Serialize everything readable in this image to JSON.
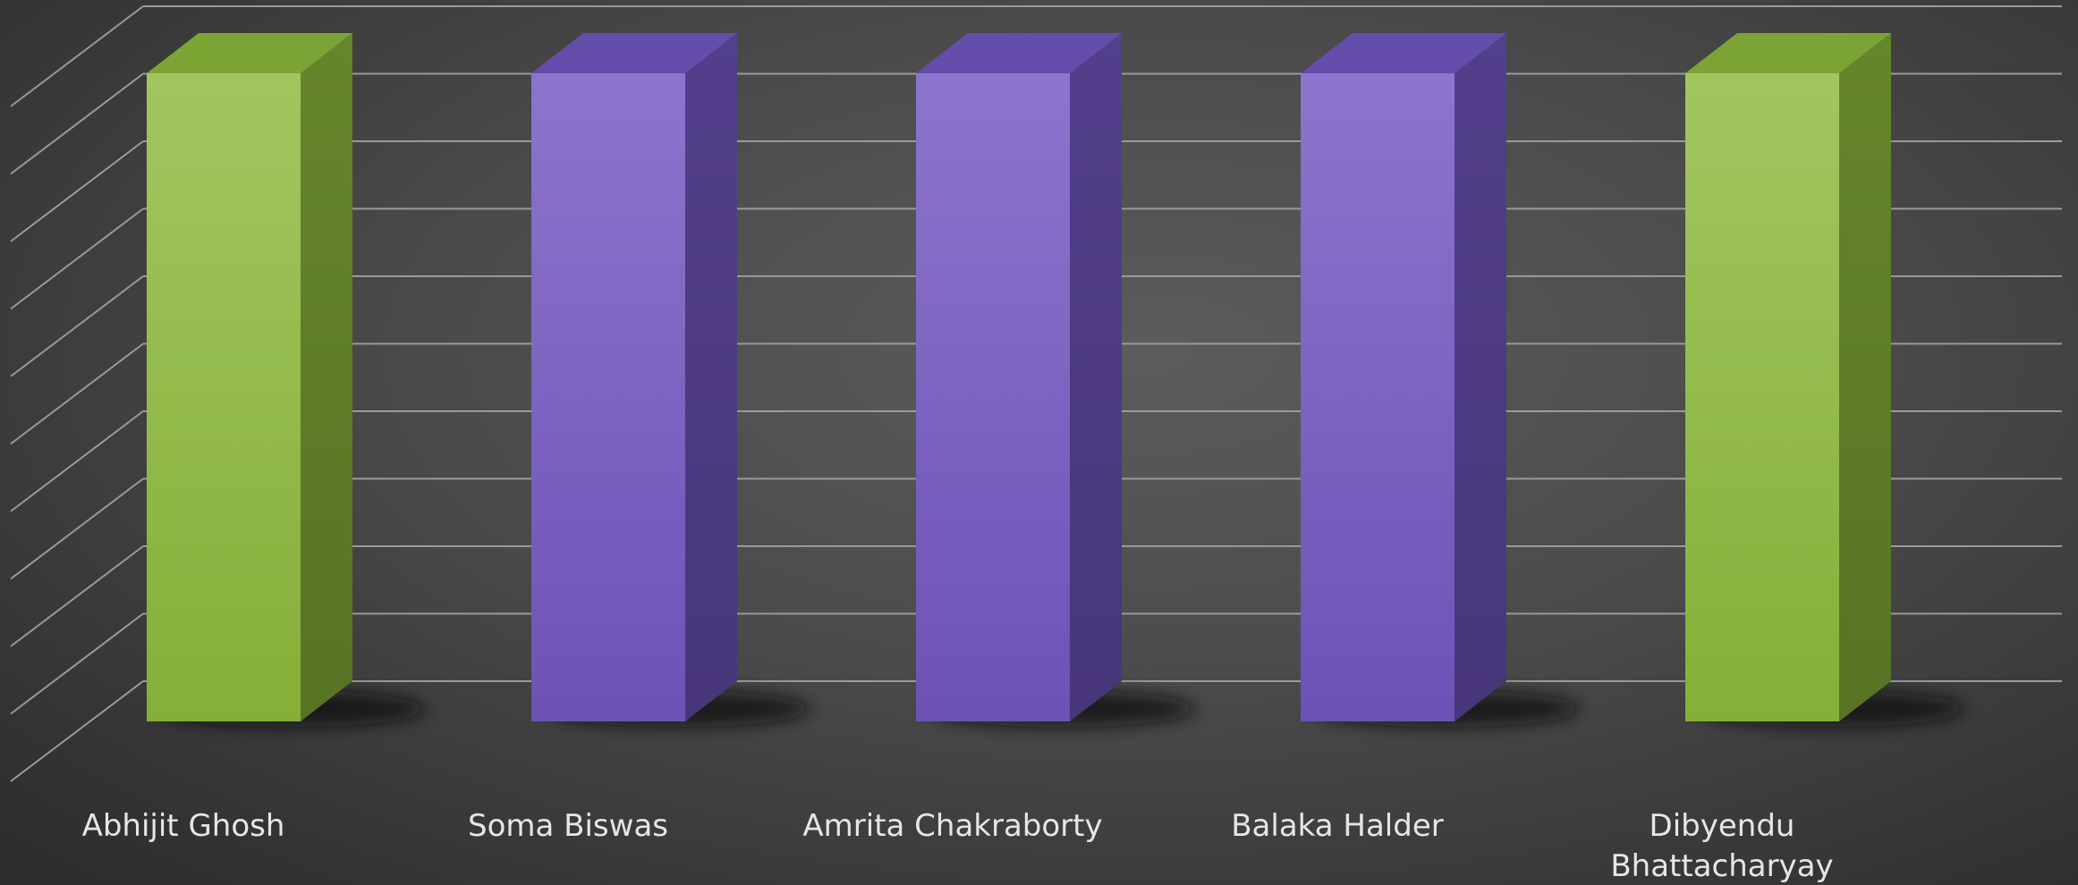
{
  "chart_data": {
    "type": "bar",
    "style": "3d-column",
    "grid": true,
    "legend": "none",
    "title": "",
    "xlabel": "",
    "ylabel": "",
    "ylim": [
      0,
      10
    ],
    "categories": [
      [
        "Abhijit Ghosh"
      ],
      [
        "Soma Biswas"
      ],
      [
        "Amrita Chakraborty"
      ],
      [
        "Balaka Halder"
      ],
      [
        "Dibyendu",
        "Bhattacharyay"
      ]
    ],
    "series": [
      {
        "values": [
          10,
          10,
          10,
          10,
          10
        ]
      }
    ],
    "bar_colors": [
      "#8dba3c",
      "#7357c2",
      "#7357c2",
      "#7357c2",
      "#8dba3c"
    ]
  }
}
